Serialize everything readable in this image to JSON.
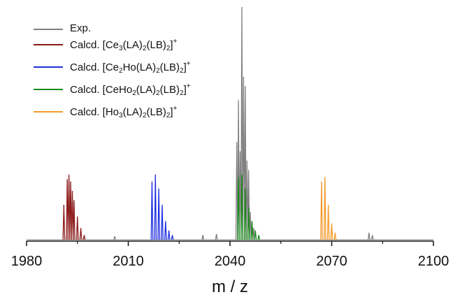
{
  "chart_data": {
    "type": "line",
    "xlabel": "m / z",
    "ylabel": "",
    "xlim": [
      1980,
      2100
    ],
    "x_ticks": [
      "1980",
      "2010",
      "2040",
      "2070",
      "2100"
    ],
    "y_axis_shown": false,
    "grid": false,
    "legend_position": "top-left",
    "series": [
      {
        "name": "Exp.",
        "color": "#7f7f7f",
        "peaks": [
          {
            "x": 2042.0,
            "y": 0.42
          },
          {
            "x": 2042.5,
            "y": 0.6
          },
          {
            "x": 2043.0,
            "y": 0.38
          },
          {
            "x": 2043.5,
            "y": 1.0
          },
          {
            "x": 2044.0,
            "y": 0.7
          },
          {
            "x": 2044.5,
            "y": 0.66
          },
          {
            "x": 2045.0,
            "y": 0.34
          },
          {
            "x": 2045.5,
            "y": 0.3
          },
          {
            "x": 2046.0,
            "y": 0.12
          },
          {
            "x": 2046.5,
            "y": 0.08
          },
          {
            "x": 2047.0,
            "y": 0.05
          },
          {
            "x": 2006.0,
            "y": 0.015
          },
          {
            "x": 2032.0,
            "y": 0.02
          },
          {
            "x": 2036.0,
            "y": 0.025
          },
          {
            "x": 2081.0,
            "y": 0.03
          },
          {
            "x": 2082.0,
            "y": 0.02
          }
        ]
      },
      {
        "name": "Calcd. [Ce3(LA)2(LB)2]+",
        "color": "#8b1a1a",
        "peaks": [
          {
            "x": 1991.0,
            "y": 0.15
          },
          {
            "x": 1992.0,
            "y": 0.26
          },
          {
            "x": 1992.5,
            "y": 0.28
          },
          {
            "x": 1993.0,
            "y": 0.25
          },
          {
            "x": 1993.5,
            "y": 0.21
          },
          {
            "x": 1994.0,
            "y": 0.17
          },
          {
            "x": 1995.0,
            "y": 0.1
          },
          {
            "x": 1996.0,
            "y": 0.05
          },
          {
            "x": 1997.0,
            "y": 0.02
          }
        ]
      },
      {
        "name": "Calcd. [Ce2Ho(LA)2(LB)2]+",
        "color": "#1f2fe0",
        "peaks": [
          {
            "x": 2017.0,
            "y": 0.25
          },
          {
            "x": 2018.0,
            "y": 0.28
          },
          {
            "x": 2019.0,
            "y": 0.22
          },
          {
            "x": 2020.0,
            "y": 0.15
          },
          {
            "x": 2021.0,
            "y": 0.08
          },
          {
            "x": 2022.0,
            "y": 0.04
          },
          {
            "x": 2023.0,
            "y": 0.02
          }
        ]
      },
      {
        "name": "Calcd. [CeHo2(LA)2(LB)2]+",
        "color": "#1a8c1a",
        "peaks": [
          {
            "x": 2042.5,
            "y": 0.27
          },
          {
            "x": 2043.5,
            "y": 0.28
          },
          {
            "x": 2044.5,
            "y": 0.22
          },
          {
            "x": 2045.5,
            "y": 0.14
          },
          {
            "x": 2046.5,
            "y": 0.08
          },
          {
            "x": 2047.5,
            "y": 0.04
          },
          {
            "x": 2048.5,
            "y": 0.02
          }
        ]
      },
      {
        "name": "Calcd. [Ho3(LA)2(LB)2]+",
        "color": "#f59a2a",
        "peaks": [
          {
            "x": 2067.0,
            "y": 0.25
          },
          {
            "x": 2068.0,
            "y": 0.27
          },
          {
            "x": 2069.0,
            "y": 0.15
          },
          {
            "x": 2070.0,
            "y": 0.07
          },
          {
            "x": 2071.0,
            "y": 0.03
          }
        ]
      }
    ]
  },
  "legend": [
    {
      "base": "Exp.",
      "color": "#7f7f7f",
      "parts": []
    },
    {
      "base": "Calcd. [Ce",
      "color": "#8b1a1a",
      "parts": [
        {
          "t": "sub",
          "v": "3"
        },
        {
          "t": "txt",
          "v": "(LA)"
        },
        {
          "t": "sub",
          "v": "2"
        },
        {
          "t": "txt",
          "v": "(LB)"
        },
        {
          "t": "sub",
          "v": "2"
        },
        {
          "t": "txt",
          "v": "]"
        },
        {
          "t": "sup",
          "v": "+"
        }
      ]
    },
    {
      "base": "Calcd. [Ce",
      "color": "#1f2fe0",
      "parts": [
        {
          "t": "sub",
          "v": "2"
        },
        {
          "t": "txt",
          "v": "Ho(LA)"
        },
        {
          "t": "sub",
          "v": "2"
        },
        {
          "t": "txt",
          "v": "(LB)"
        },
        {
          "t": "sub",
          "v": "2"
        },
        {
          "t": "txt",
          "v": "]"
        },
        {
          "t": "sup",
          "v": "+"
        }
      ]
    },
    {
      "base": "Calcd. [CeHo",
      "color": "#1a8c1a",
      "parts": [
        {
          "t": "sub",
          "v": "2"
        },
        {
          "t": "txt",
          "v": "(LA)"
        },
        {
          "t": "sub",
          "v": "2"
        },
        {
          "t": "txt",
          "v": "(LB)"
        },
        {
          "t": "sub",
          "v": "2"
        },
        {
          "t": "txt",
          "v": "]"
        },
        {
          "t": "sup",
          "v": "+"
        }
      ]
    },
    {
      "base": "Calcd. [Ho",
      "color": "#f59a2a",
      "parts": [
        {
          "t": "sub",
          "v": "3"
        },
        {
          "t": "txt",
          "v": "(LA)"
        },
        {
          "t": "sub",
          "v": "2"
        },
        {
          "t": "txt",
          "v": "(LB)"
        },
        {
          "t": "sub",
          "v": "2"
        },
        {
          "t": "txt",
          "v": "]"
        },
        {
          "t": "sup",
          "v": "+"
        }
      ]
    }
  ]
}
